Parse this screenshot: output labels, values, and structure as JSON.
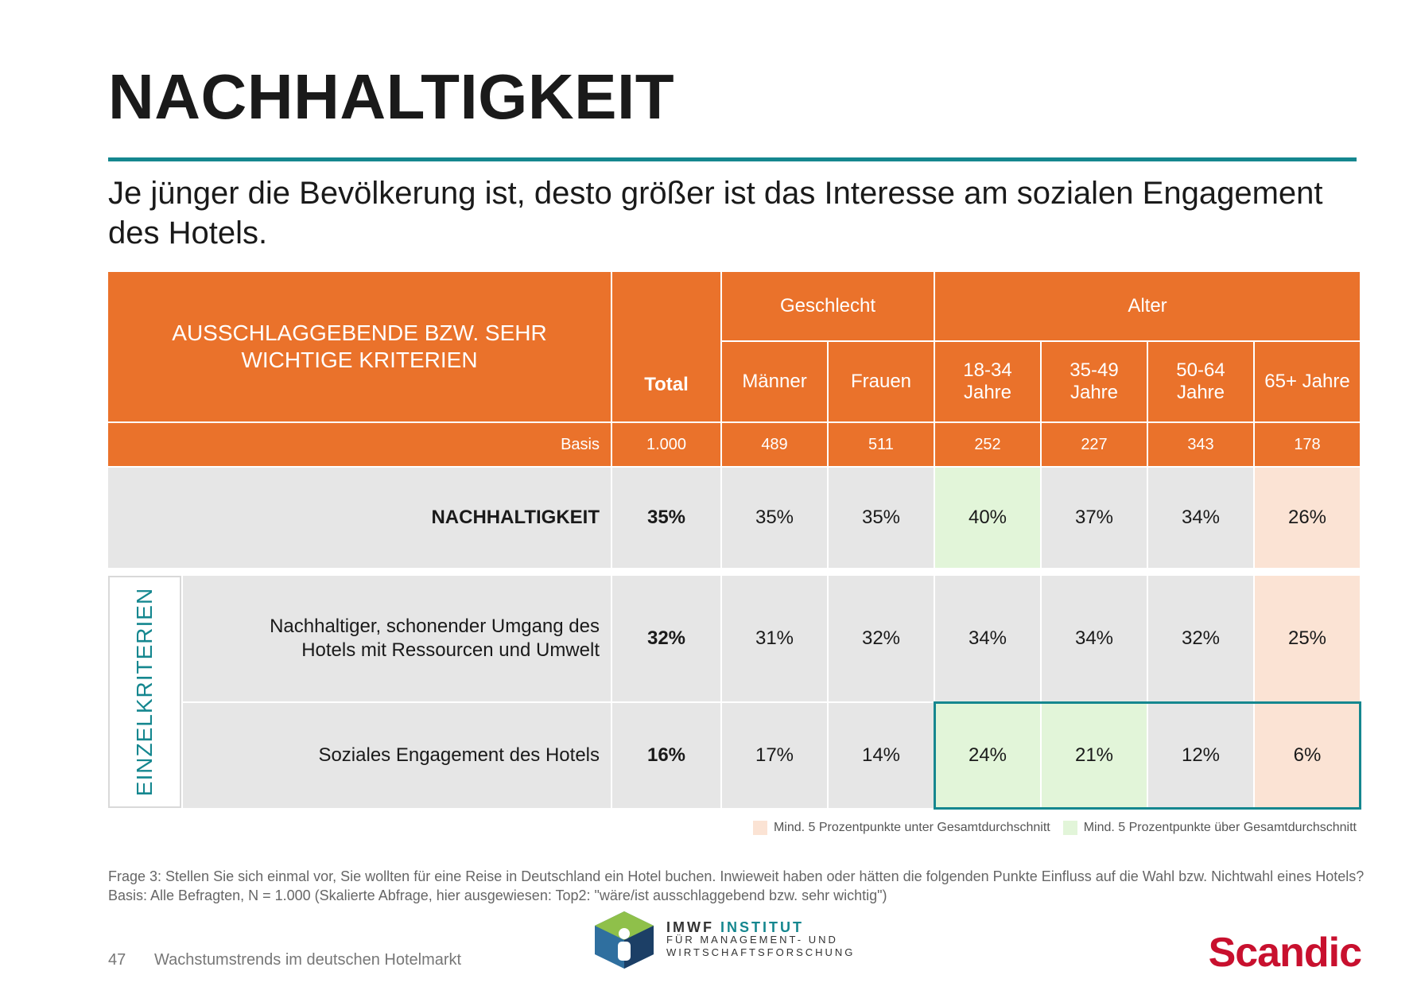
{
  "page": {
    "title": "NACHHALTIGKEIT",
    "subtitle": "Je jünger die Bevölkerung ist, desto größer ist das Interesse am sozialen Engagement des Hotels."
  },
  "table": {
    "criteria_header": "AUSSCHLAGGEBENDE BZW. SEHR WICHTIGE KRITERIEN",
    "total_header": "Total",
    "group_gender": "Geschlecht",
    "group_age": "Alter",
    "columns": [
      "Männer",
      "Frauen",
      "18-34 Jahre",
      "35-49 Jahre",
      "50-64 Jahre",
      "65+ Jahre"
    ],
    "basis_label": "Basis",
    "basis_values": [
      "1.000",
      "489",
      "511",
      "252",
      "227",
      "343",
      "178"
    ],
    "side_label": "EINZELKRITERIEN",
    "rows": [
      {
        "label": "NACHHALTIGKEIT",
        "values": [
          "35%",
          "35%",
          "35%",
          "40%",
          "37%",
          "34%",
          "26%"
        ]
      },
      {
        "label": "Nachhaltiger, schonender Umgang des Hotels mit Ressourcen und Umwelt",
        "values": [
          "32%",
          "31%",
          "32%",
          "34%",
          "34%",
          "32%",
          "25%"
        ]
      },
      {
        "label": "Soziales Engagement des Hotels",
        "values": [
          "16%",
          "17%",
          "14%",
          "24%",
          "21%",
          "12%",
          "6%"
        ]
      }
    ]
  },
  "colors": {
    "header": "#ea722b",
    "teal": "#15878f",
    "above_average": "#e2f5d9",
    "below_average": "#fbe3d4",
    "brand_red": "#c8102e"
  },
  "legend": {
    "below": "Mind. 5 Prozentpunkte unter Gesamtdurchschnitt",
    "above": "Mind. 5 Prozentpunkte über Gesamtdurchschnitt"
  },
  "note": "Frage 3: Stellen Sie sich einmal vor, Sie wollten für eine Reise in Deutschland ein Hotel buchen. Inwieweit haben oder hätten die folgenden Punkte Einfluss auf die Wahl bzw. Nichtwahl eines Hotels? Basis: Alle Befragten, N = 1.000 (Skalierte Abfrage, hier ausgewiesen: Top2: \"wäre/ist ausschlaggebend bzw. sehr wichtig\")",
  "footer": {
    "page_number": "47",
    "text": "Wachstumstrends im deutschen Hotelmarkt"
  },
  "logo": {
    "line1a": "IMWF",
    "line1b": "INSTITUT",
    "line2": "FÜR MANAGEMENT- UND",
    "line3": "WIRTSCHAFTSFORSCHUNG"
  },
  "brand": "Scandic"
}
